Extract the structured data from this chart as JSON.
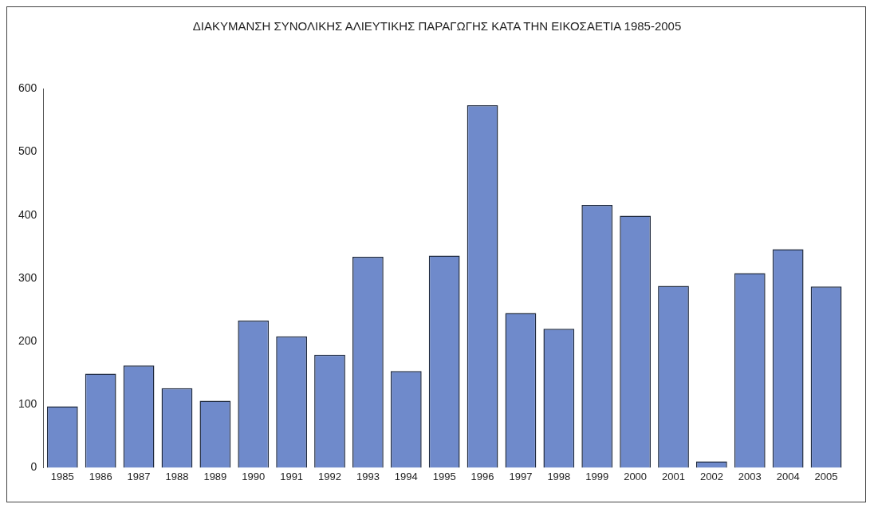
{
  "chart_data": {
    "type": "bar",
    "title": "ΔΙΑΚΥΜΑΝΣΗ ΣΥΝΟΛΙΚΗΣ ΑΛΙΕΥΤΙΚΗΣ ΠΑΡΑΓΩΓΗΣ ΚΑΤΑ ΤΗΝ ΕΙΚΟΣΑΕΤΙΑ 1985-2005",
    "categories": [
      "1985",
      "1986",
      "1987",
      "1988",
      "1989",
      "1990",
      "1991",
      "1992",
      "1993",
      "1994",
      "1995",
      "1996",
      "1997",
      "1998",
      "1999",
      "2000",
      "2001",
      "2002",
      "2003",
      "2004",
      "2005"
    ],
    "values": [
      97,
      149,
      162,
      126,
      106,
      233,
      208,
      179,
      334,
      153,
      336,
      574,
      245,
      220,
      416,
      399,
      288,
      10,
      308,
      346,
      287
    ],
    "color": "#6f8acb",
    "ylim": [
      0,
      600
    ],
    "yticks": [
      0,
      100,
      200,
      300,
      400,
      500,
      600
    ],
    "grid": false,
    "legend": false
  }
}
